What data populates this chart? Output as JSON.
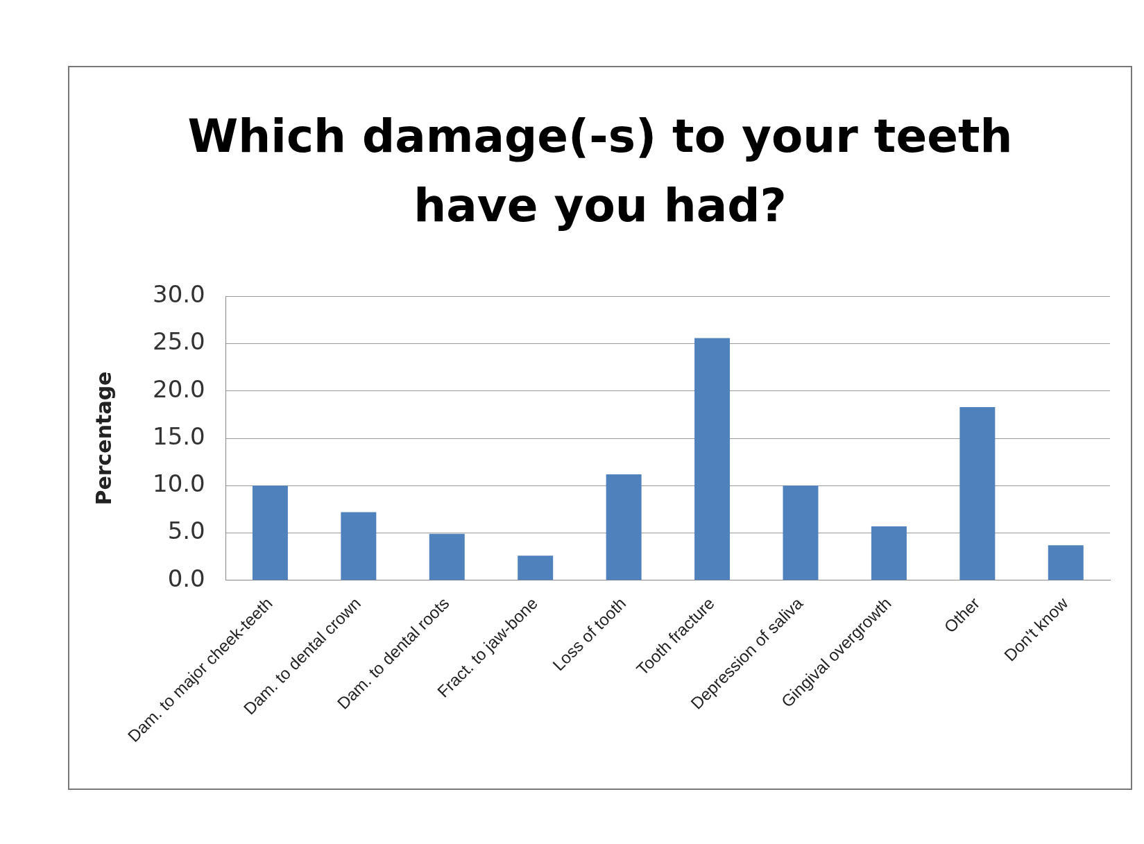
{
  "chart_data": {
    "type": "bar",
    "title": "Which damage(-s) to your teeth have you had?",
    "ylabel": "Percentage",
    "categories": [
      "Dam. to major cheek-teeth",
      "Dam. to dental crown",
      "Dam. to dental roots",
      "Fract. to jaw-bone",
      "Loss of tooth",
      "Tooth fracture",
      "Depression of saliva",
      "Gingival overgrowth",
      "Other",
      "Don't know"
    ],
    "values": [
      10.0,
      7.2,
      4.9,
      2.6,
      11.2,
      25.6,
      10.0,
      5.7,
      18.3,
      3.7
    ],
    "color": "#4f81bd",
    "ylim": [
      0,
      30
    ],
    "yticks": [
      {
        "value": 0,
        "label": "0.0"
      },
      {
        "value": 5,
        "label": "5.0"
      },
      {
        "value": 10,
        "label": "10.0"
      },
      {
        "value": 15,
        "label": "15.0"
      },
      {
        "value": 20,
        "label": "20.0"
      },
      {
        "value": 25,
        "label": "25.0"
      },
      {
        "value": 30,
        "label": "30.0"
      }
    ],
    "grid": "y",
    "legend": false
  }
}
